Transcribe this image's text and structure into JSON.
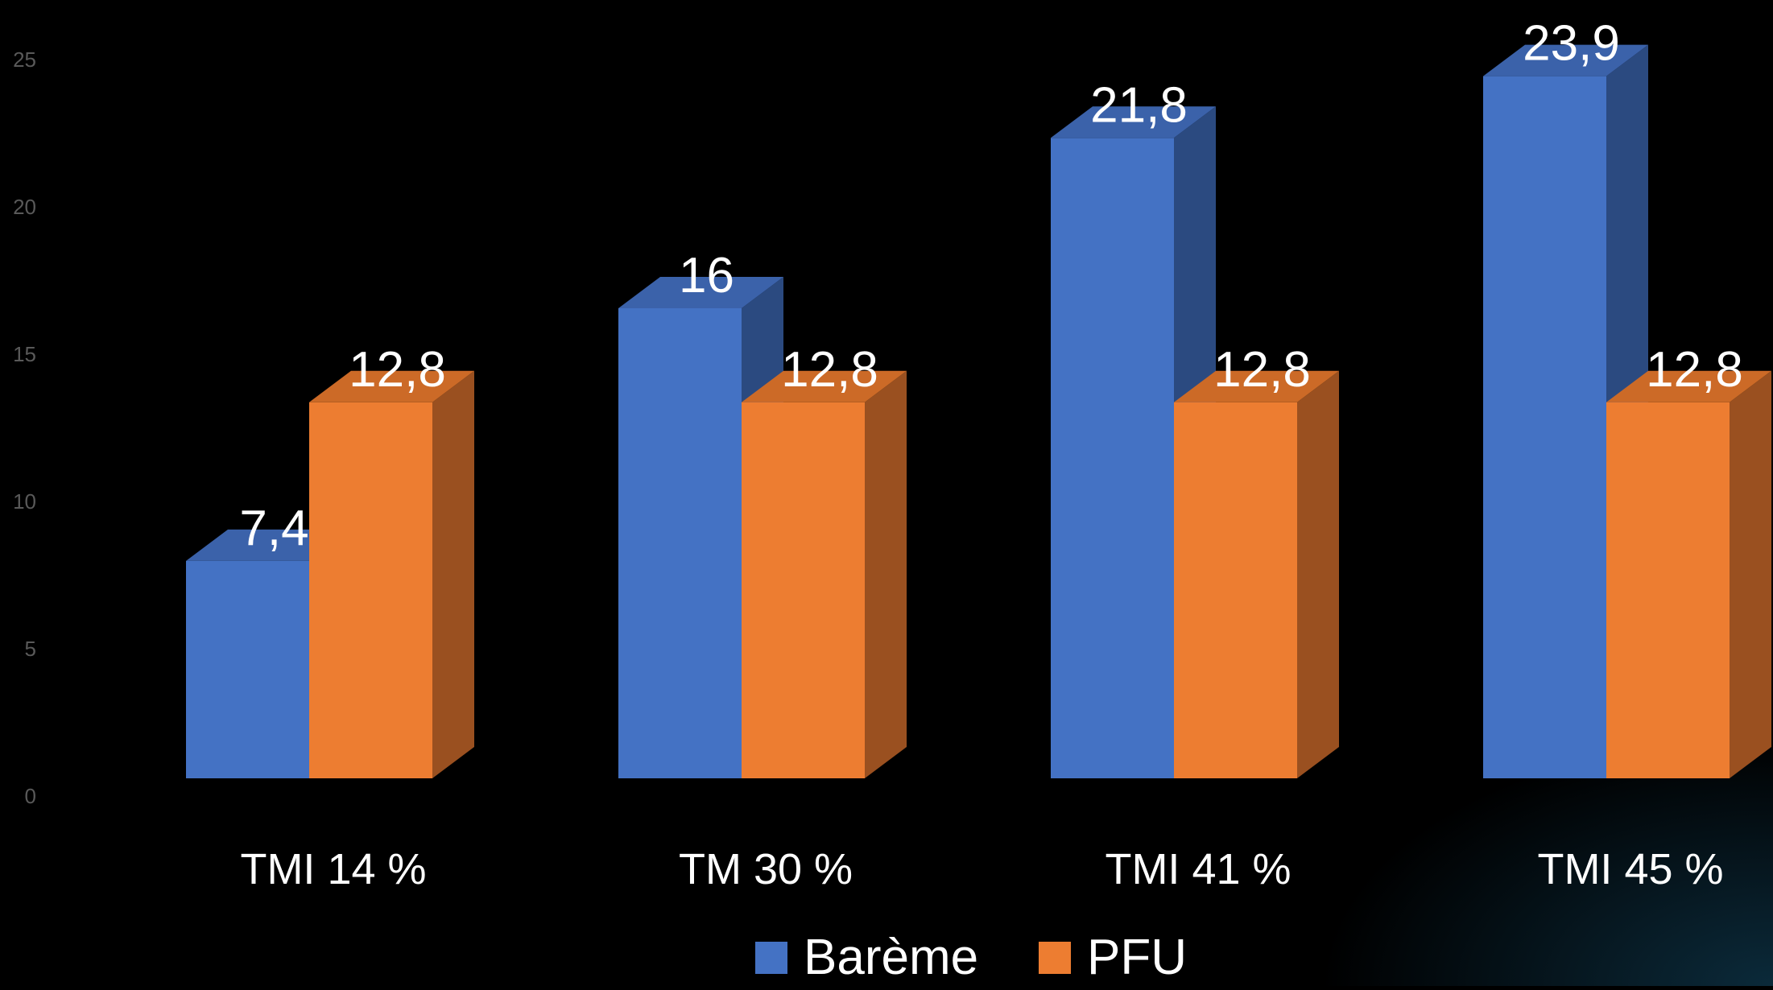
{
  "chart_data": {
    "type": "bar",
    "title": "",
    "xlabel": "",
    "ylabel": "",
    "categories": [
      "TMI 14 %",
      "TM 30 %",
      "TMI 41 %",
      "TMI 45 %"
    ],
    "series": [
      {
        "name": "Barème",
        "values": [
          7.4,
          16,
          21.8,
          23.9
        ],
        "labels": [
          "7,4",
          "16",
          "21,8",
          "23,9"
        ]
      },
      {
        "name": "PFU",
        "values": [
          12.8,
          12.8,
          12.8,
          12.8
        ],
        "labels": [
          "12,8",
          "12,8",
          "12,8",
          "12,8"
        ]
      }
    ],
    "yticks": [
      "0",
      "5",
      "10",
      "15",
      "20",
      "25"
    ],
    "ylim": [
      0,
      25
    ],
    "grid": false,
    "legend_position": "bottom",
    "style": "3d-clustered-column",
    "colors": {
      "bareme": "#4472C4",
      "bareme_top": "#3B62AA",
      "bareme_side": "#2B4A80",
      "pfu": "#ED7D31",
      "pfu_top": "#CC6A27",
      "pfu_side": "#9A5020",
      "axis_text": "#595959",
      "label_text": "#FFFFFF"
    }
  }
}
